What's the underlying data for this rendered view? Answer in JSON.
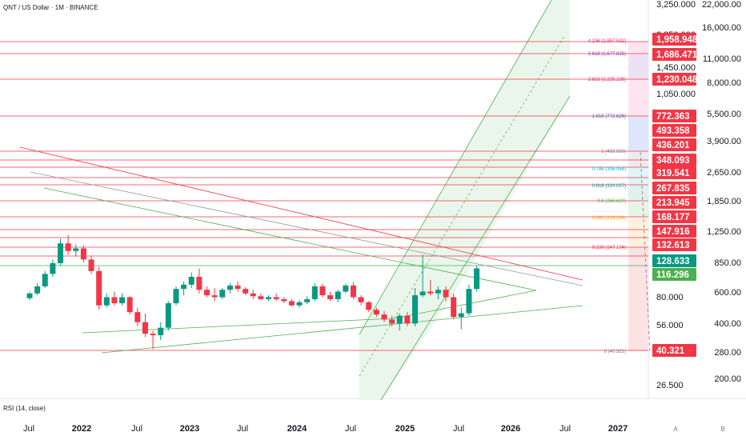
{
  "header": {
    "symbol_line": "QNT / US Dollar · 1M · BINANCE"
  },
  "indicator": {
    "label": "RSI (14, close)"
  },
  "colors": {
    "up": "#089981",
    "down": "#f23645",
    "hline": "#f23645",
    "channel": "#4caf50",
    "channel_fill": "#e8f5e9",
    "tag_red": "#f23645",
    "tag_green_dark": "#089981",
    "tag_green": "#4caf50"
  },
  "chart_data": {
    "type": "candlestick",
    "interval": "1M",
    "log_scale": true,
    "x_axis": {
      "tick_labels": [
        "Jul",
        "2022",
        "Jul",
        "2023",
        "Jul",
        "2024",
        "Jul",
        "2025",
        "Jul",
        "2026",
        "Jul",
        "2027"
      ]
    },
    "y_axis_left_scale": {
      "tick_labels": [
        "3,250.000",
        "2,250.000",
        "1,450.000",
        "1,050.000",
        "80.000",
        "56.000",
        "26.500"
      ]
    },
    "y_axis_right_scale": {
      "tick_labels": [
        "22,000.00",
        "16,000.00",
        "11,000.00",
        "8,000.00",
        "5,500.00",
        "3,900.00",
        "2,650.00",
        "1,850.00",
        "1,250.00",
        "850.00",
        "600.00",
        "400.00",
        "280.00",
        "200.00"
      ]
    },
    "bottom_scale_labels": [
      "A",
      "B"
    ],
    "price_tags": [
      {
        "value": "1,958.948",
        "color": "#f23645"
      },
      {
        "value": "1,686.471",
        "color": "#f23645"
      },
      {
        "value": "1,230.048",
        "color": "#f23645"
      },
      {
        "value": "772.363",
        "color": "#f23645"
      },
      {
        "value": "493.358",
        "color": "#f23645"
      },
      {
        "value": "436.201",
        "color": "#f23645"
      },
      {
        "value": "348.093",
        "color": "#f23645"
      },
      {
        "value": "319.541",
        "color": "#f23645"
      },
      {
        "value": "267.835",
        "color": "#f23645"
      },
      {
        "value": "213.945",
        "color": "#f23645"
      },
      {
        "value": "168.177",
        "color": "#f23645"
      },
      {
        "value": "147.916",
        "color": "#f23645"
      },
      {
        "value": "132.613",
        "color": "#f23645"
      },
      {
        "value": "128.633",
        "color": "#089981"
      },
      {
        "value": "116.296",
        "color": "#4caf50"
      },
      {
        "value": "40.321",
        "color": "#f23645"
      }
    ],
    "fib_levels": [
      {
        "label": "4.236 (1,957.532)",
        "color": "#e91e63"
      },
      {
        "label": "3.618 (1,677.825)",
        "color": "#9c27b0"
      },
      {
        "label": "2.618 (1,225.226)",
        "color": "#e91e63"
      },
      {
        "label": "1.618 (772.626)",
        "color": "#3f51b5"
      },
      {
        "label": "1 (492.920)",
        "color": "#787b86"
      },
      {
        "label": "0.786 (396.064)",
        "color": "#00bcd4"
      },
      {
        "label": "0.618 (320.027)",
        "color": "#009688"
      },
      {
        "label": "0.5 (266.620)",
        "color": "#4caf50"
      },
      {
        "label": "0.382 (213.214)",
        "color": "#ff9800"
      },
      {
        "label": "0.236 (147.134)",
        "color": "#f23645"
      },
      {
        "label": "0 (40.321)",
        "color": "#787b86"
      }
    ],
    "candles": [
      {
        "o": 79,
        "h": 86,
        "l": 77,
        "c": 84
      },
      {
        "o": 84,
        "h": 96,
        "l": 82,
        "c": 92
      },
      {
        "o": 92,
        "h": 112,
        "l": 90,
        "c": 108
      },
      {
        "o": 108,
        "h": 130,
        "l": 104,
        "c": 124
      },
      {
        "o": 124,
        "h": 170,
        "l": 120,
        "c": 160
      },
      {
        "o": 160,
        "h": 178,
        "l": 138,
        "c": 145
      },
      {
        "o": 145,
        "h": 158,
        "l": 135,
        "c": 150
      },
      {
        "o": 150,
        "h": 156,
        "l": 125,
        "c": 130
      },
      {
        "o": 130,
        "h": 136,
        "l": 108,
        "c": 112
      },
      {
        "o": 112,
        "h": 118,
        "l": 68,
        "c": 72
      },
      {
        "o": 72,
        "h": 84,
        "l": 70,
        "c": 80
      },
      {
        "o": 80,
        "h": 86,
        "l": 72,
        "c": 74
      },
      {
        "o": 74,
        "h": 84,
        "l": 72,
        "c": 80
      },
      {
        "o": 80,
        "h": 81,
        "l": 64,
        "c": 66
      },
      {
        "o": 66,
        "h": 70,
        "l": 55,
        "c": 58
      },
      {
        "o": 58,
        "h": 65,
        "l": 48,
        "c": 50
      },
      {
        "o": 50,
        "h": 52,
        "l": 41,
        "c": 49
      },
      {
        "o": 49,
        "h": 58,
        "l": 46,
        "c": 54
      },
      {
        "o": 54,
        "h": 76,
        "l": 52,
        "c": 74
      },
      {
        "o": 74,
        "h": 92,
        "l": 72,
        "c": 89
      },
      {
        "o": 89,
        "h": 98,
        "l": 82,
        "c": 94
      },
      {
        "o": 94,
        "h": 110,
        "l": 90,
        "c": 104
      },
      {
        "o": 104,
        "h": 116,
        "l": 84,
        "c": 88
      },
      {
        "o": 88,
        "h": 92,
        "l": 80,
        "c": 82
      },
      {
        "o": 82,
        "h": 90,
        "l": 76,
        "c": 80
      },
      {
        "o": 80,
        "h": 90,
        "l": 78,
        "c": 88
      },
      {
        "o": 88,
        "h": 96,
        "l": 84,
        "c": 93
      },
      {
        "o": 93,
        "h": 98,
        "l": 86,
        "c": 89
      },
      {
        "o": 89,
        "h": 91,
        "l": 82,
        "c": 84
      },
      {
        "o": 84,
        "h": 88,
        "l": 78,
        "c": 81
      },
      {
        "o": 81,
        "h": 84,
        "l": 77,
        "c": 78
      },
      {
        "o": 78,
        "h": 82,
        "l": 76,
        "c": 80
      },
      {
        "o": 80,
        "h": 84,
        "l": 76,
        "c": 78
      },
      {
        "o": 78,
        "h": 80,
        "l": 74,
        "c": 76
      },
      {
        "o": 76,
        "h": 78,
        "l": 71,
        "c": 72
      },
      {
        "o": 72,
        "h": 77,
        "l": 70,
        "c": 75
      },
      {
        "o": 75,
        "h": 81,
        "l": 73,
        "c": 78
      },
      {
        "o": 78,
        "h": 96,
        "l": 76,
        "c": 92
      },
      {
        "o": 92,
        "h": 95,
        "l": 80,
        "c": 82
      },
      {
        "o": 82,
        "h": 86,
        "l": 76,
        "c": 78
      },
      {
        "o": 78,
        "h": 88,
        "l": 75,
        "c": 86
      },
      {
        "o": 86,
        "h": 95,
        "l": 84,
        "c": 93
      },
      {
        "o": 93,
        "h": 97,
        "l": 78,
        "c": 80
      },
      {
        "o": 80,
        "h": 82,
        "l": 72,
        "c": 75
      },
      {
        "o": 75,
        "h": 76,
        "l": 66,
        "c": 68
      },
      {
        "o": 68,
        "h": 70,
        "l": 62,
        "c": 64
      },
      {
        "o": 64,
        "h": 67,
        "l": 58,
        "c": 60
      },
      {
        "o": 60,
        "h": 63,
        "l": 55,
        "c": 57
      },
      {
        "o": 57,
        "h": 65,
        "l": 52,
        "c": 63
      },
      {
        "o": 63,
        "h": 66,
        "l": 55,
        "c": 57
      },
      {
        "o": 57,
        "h": 90,
        "l": 55,
        "c": 82
      },
      {
        "o": 82,
        "h": 138,
        "l": 80,
        "c": 86
      },
      {
        "o": 86,
        "h": 100,
        "l": 82,
        "c": 84
      },
      {
        "o": 84,
        "h": 92,
        "l": 78,
        "c": 88
      },
      {
        "o": 88,
        "h": 92,
        "l": 76,
        "c": 80
      },
      {
        "o": 80,
        "h": 84,
        "l": 60,
        "c": 62
      },
      {
        "o": 62,
        "h": 70,
        "l": 53,
        "c": 65
      },
      {
        "o": 65,
        "h": 94,
        "l": 63,
        "c": 89
      },
      {
        "o": 89,
        "h": 120,
        "l": 86,
        "c": 116
      }
    ]
  }
}
